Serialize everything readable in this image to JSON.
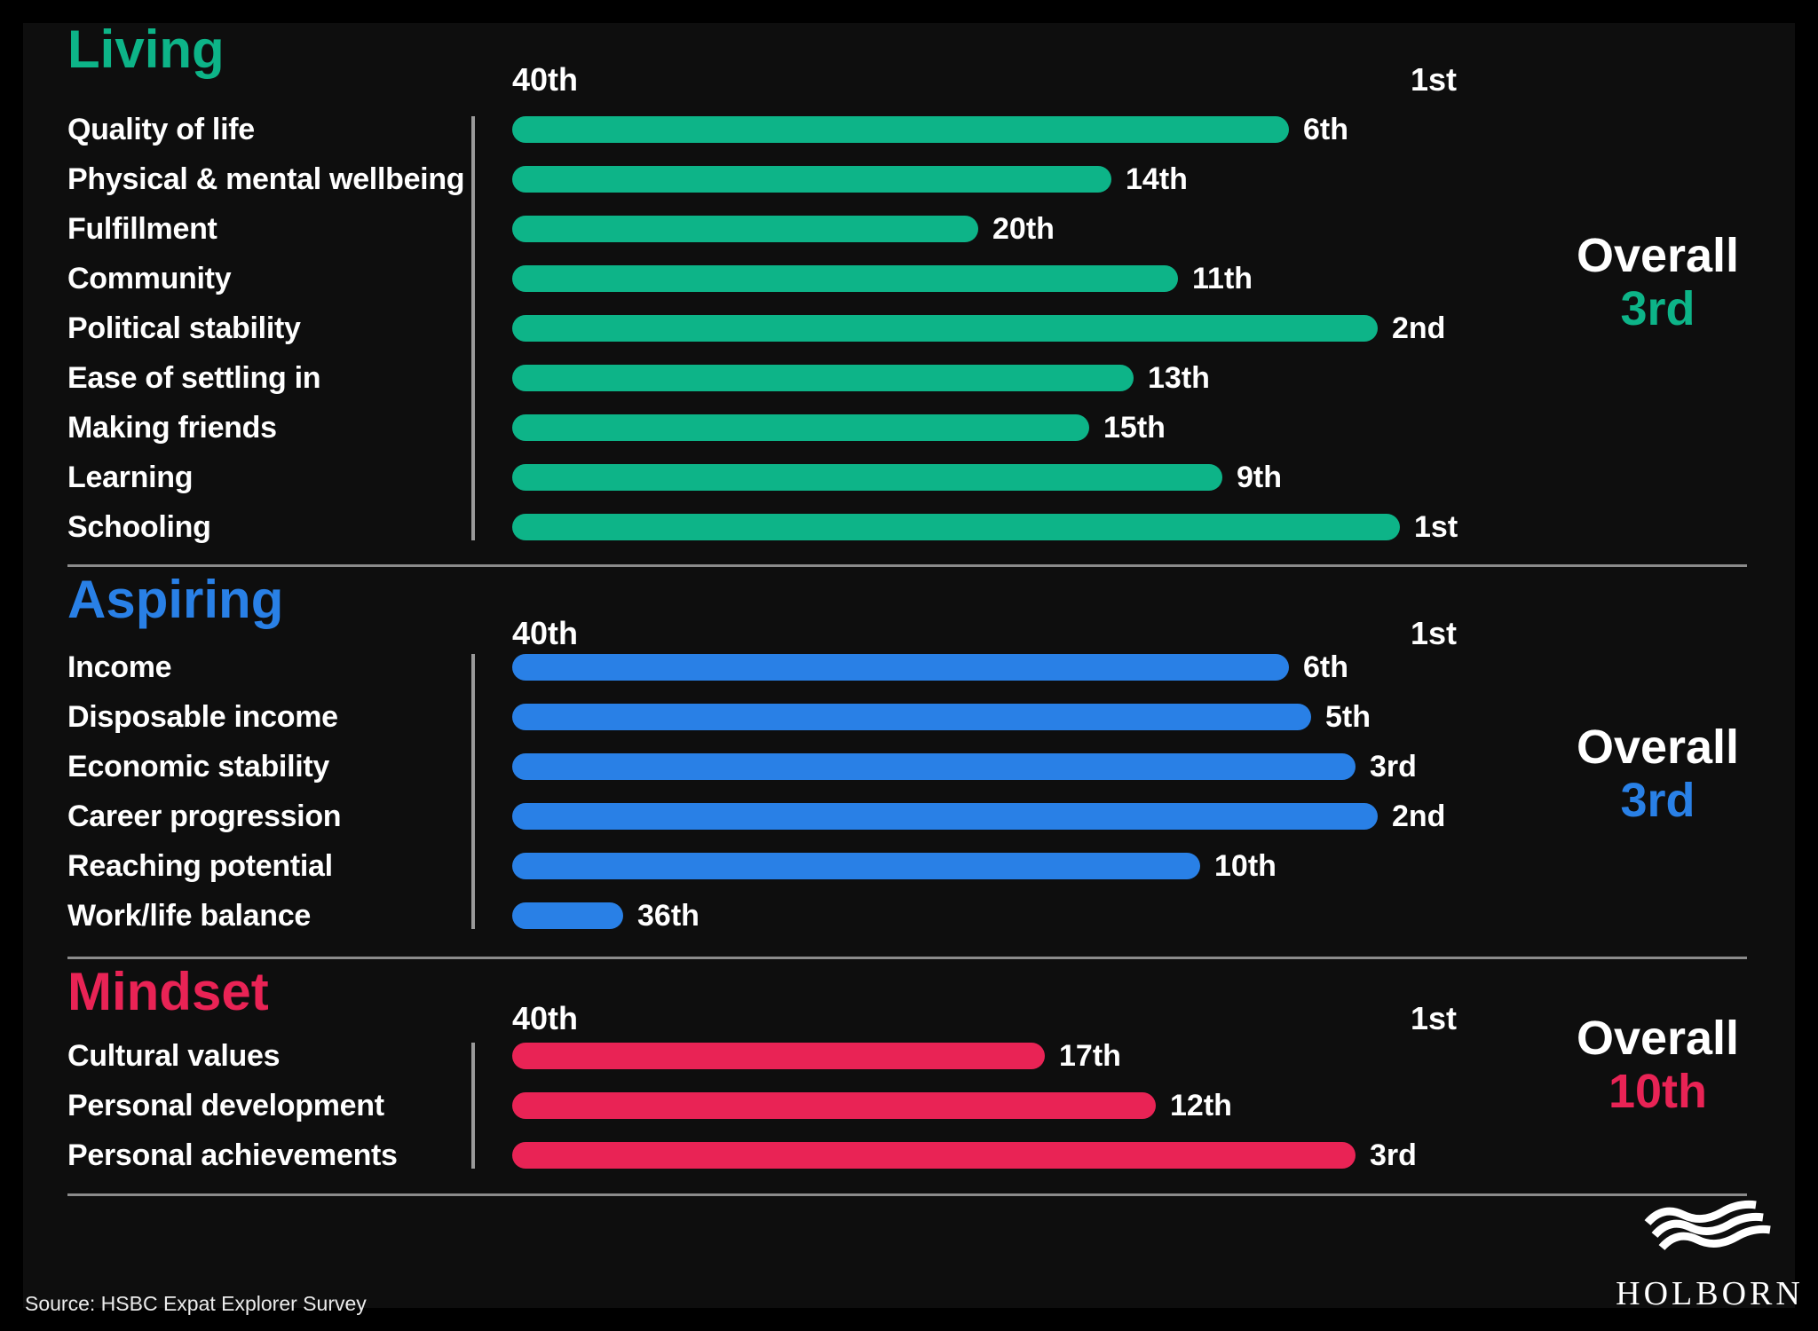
{
  "page": {
    "source_note": "Source: HSBC Expat Explorer Survey",
    "logo": {
      "text": "HOLBORN",
      "icon": "waves-icon"
    },
    "background_color": "#0e0e0e",
    "line_color": "#8b8b8b"
  },
  "chart_data": {
    "type": "bar",
    "orientation": "horizontal",
    "axis": {
      "left_tick_label": "40th",
      "right_tick_label": "1st",
      "min_rank": 40,
      "max_rank": 1,
      "note": "bars grow from 40th (left) toward 1st (right); longer bar = better rank"
    },
    "sections": [
      {
        "title": "Living",
        "color": "#0db488",
        "overall_label": "Overall",
        "overall_rank": "3rd",
        "rows": [
          {
            "label": "Quality of life",
            "rank": "6th",
            "rank_value": 6
          },
          {
            "label": "Physical & mental wellbeing",
            "rank": "14th",
            "rank_value": 14
          },
          {
            "label": "Fulfillment",
            "rank": "20th",
            "rank_value": 20
          },
          {
            "label": "Community",
            "rank": "11th",
            "rank_value": 11
          },
          {
            "label": "Political stability",
            "rank": "2nd",
            "rank_value": 2
          },
          {
            "label": "Ease of settling in",
            "rank": "13th",
            "rank_value": 13
          },
          {
            "label": "Making friends",
            "rank": "15th",
            "rank_value": 15
          },
          {
            "label": "Learning",
            "rank": "9th",
            "rank_value": 9
          },
          {
            "label": "Schooling",
            "rank": "1st",
            "rank_value": 1
          }
        ]
      },
      {
        "title": "Aspiring",
        "color": "#2980e6",
        "overall_label": "Overall",
        "overall_rank": "3rd",
        "rows": [
          {
            "label": "Income",
            "rank": "6th",
            "rank_value": 6
          },
          {
            "label": "Disposable income",
            "rank": "5th",
            "rank_value": 5
          },
          {
            "label": "Economic stability",
            "rank": "3rd",
            "rank_value": 3
          },
          {
            "label": "Career progression",
            "rank": "2nd",
            "rank_value": 2
          },
          {
            "label": "Reaching potential",
            "rank": "10th",
            "rank_value": 10
          },
          {
            "label": "Work/life balance",
            "rank": "36th",
            "rank_value": 36
          }
        ]
      },
      {
        "title": "Mindset",
        "color": "#e92355",
        "overall_label": "Overall",
        "overall_rank": "10th",
        "rows": [
          {
            "label": "Cultural values",
            "rank": "17th",
            "rank_value": 17
          },
          {
            "label": "Personal development",
            "rank": "12th",
            "rank_value": 12
          },
          {
            "label": "Personal achievements",
            "rank": "3rd",
            "rank_value": 3
          }
        ]
      }
    ]
  }
}
